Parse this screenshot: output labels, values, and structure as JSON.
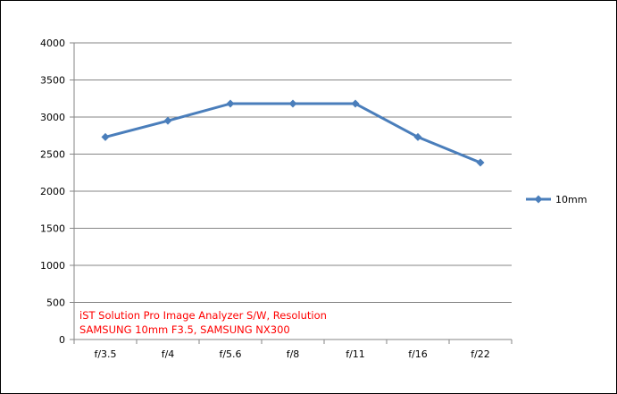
{
  "chart_data": {
    "type": "line",
    "categories": [
      "f/3.5",
      "f/4",
      "f/5.6",
      "f/8",
      "f/11",
      "f/16",
      "f/22"
    ],
    "series": [
      {
        "name": "10mm",
        "values": [
          2730,
          2950,
          3180,
          3180,
          3180,
          2730,
          2385
        ],
        "color": "#4a7ebb"
      }
    ],
    "ylim": [
      0,
      4000
    ],
    "yticks": [
      0,
      500,
      1000,
      1500,
      2000,
      2500,
      3000,
      3500,
      4000
    ],
    "grid": true,
    "legend": "right",
    "marker": "diamond",
    "annotation": [
      "iST Solution Pro Image Analyzer S/W, Resolution",
      "SAMSUNG 10mm F3.5, SAMSUNG NX300"
    ]
  }
}
